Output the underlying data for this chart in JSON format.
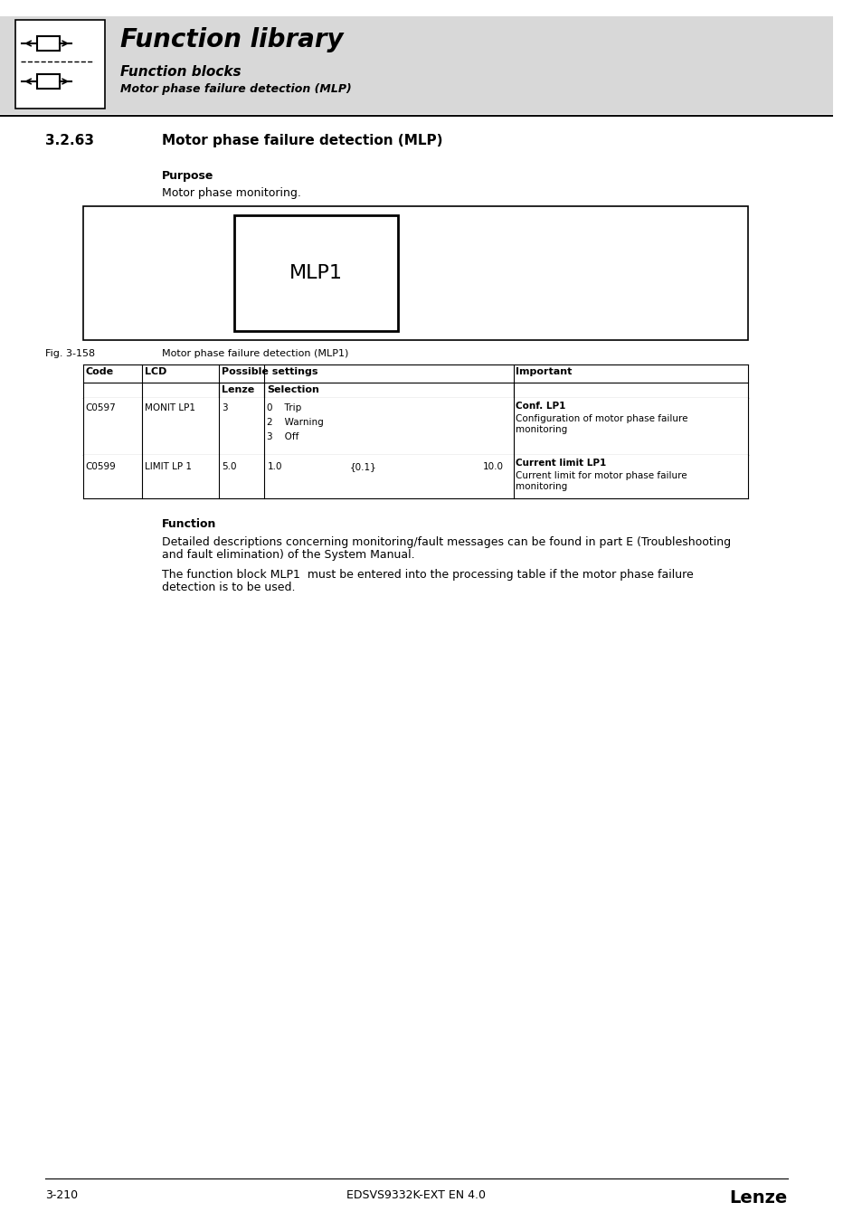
{
  "page_number": "3-210",
  "doc_code": "EDSVS9332K-EXT EN 4.0",
  "brand": "Lenze",
  "header_bg": "#d8d8d8",
  "header_title": "Function library",
  "header_sub1": "Function blocks",
  "header_sub2": "Motor phase failure detection (MLP)",
  "section_number": "3.2.63",
  "section_title": "Motor phase failure detection (MLP)",
  "purpose_label": "Purpose",
  "purpose_text": "Motor phase monitoring.",
  "fig_label": "Fig. 3-158",
  "fig_caption": "Motor phase failure detection (MLP1)",
  "mlp_label": "MLP1",
  "function_label": "Function",
  "function_text1_line1": "Detailed descriptions concerning monitoring/fault messages can be found in part E (Troubleshooting",
  "function_text1_line2": "and fault elimination) of the System Manual.",
  "function_text2_line1": "The function block MLP1  must be entered into the processing table if the motor phase failure",
  "function_text2_line2": "detection is to be used.",
  "table_rows": [
    {
      "code": "C0597",
      "lcd": "MONIT LP1",
      "lenze": "3",
      "selection": [
        "0    Trip",
        "2    Warning",
        "3    Off"
      ],
      "important_bold": "Conf. LP1",
      "important_normal_line1": "Configuration of motor phase failure",
      "important_normal_line2": "monitoring"
    },
    {
      "code": "C0599",
      "lcd": "LIMIT LP 1",
      "lenze": "5.0",
      "selection_min": "1.0",
      "selection_mid": "{0.1}",
      "selection_max": "10.0",
      "important_bold": "Current limit LP1",
      "important_normal_line1": "Current limit for motor phase failure",
      "important_normal_line2": "monitoring"
    }
  ]
}
